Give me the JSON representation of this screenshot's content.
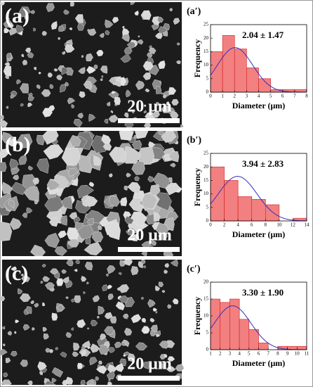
{
  "images": [
    {
      "label": "(a)",
      "scale_bar": "20 μm"
    },
    {
      "label": "(b)",
      "scale_bar": "20 μm"
    },
    {
      "label": "(c)",
      "scale_bar": "20 μm"
    }
  ],
  "chart_data": [
    {
      "type": "histogram",
      "label": "(a′)",
      "annotation": "2.04 ± 1.47",
      "x_label": "Diameter (μm)",
      "y_label": "Frequency",
      "bins": [
        0,
        1,
        2,
        3,
        4,
        5,
        6,
        7,
        8
      ],
      "values": [
        15,
        21,
        16,
        9,
        5,
        1,
        1,
        1
      ],
      "color": "#f28080",
      "edge_color": "#d02020",
      "fit": {
        "mean": 2.04,
        "sd": 1.47,
        "amplitude": 16.5,
        "color": "#3030c0"
      },
      "xlim": [
        0,
        8
      ],
      "xticks": [
        0,
        1,
        2,
        3,
        4,
        5,
        6,
        7,
        8
      ],
      "ylim": [
        0,
        25
      ],
      "yticks": [
        0,
        5,
        10,
        15,
        20,
        25
      ]
    },
    {
      "type": "histogram",
      "label": "(b′)",
      "annotation": "3.94 ± 2.83",
      "x_label": "Diameter (μm)",
      "y_label": "Frequency",
      "bins": [
        0,
        2,
        4,
        6,
        8,
        10,
        12,
        14
      ],
      "values": [
        20,
        15,
        9,
        8,
        6,
        0,
        1
      ],
      "color": "#f28080",
      "edge_color": "#d02020",
      "fit": {
        "mean": 3.94,
        "sd": 2.83,
        "amplitude": 16.5,
        "color": "#3030c0"
      },
      "xlim": [
        0,
        14
      ],
      "xticks": [
        0,
        2,
        4,
        6,
        8,
        10,
        12,
        14
      ],
      "ylim": [
        0,
        25
      ],
      "yticks": [
        0,
        5,
        10,
        15,
        20,
        25
      ]
    },
    {
      "type": "histogram",
      "label": "(c′)",
      "annotation": "3.30 ± 1.90",
      "x_label": "Diameter (μm)",
      "y_label": "Frequency",
      "bins": [
        1,
        2,
        3,
        4,
        5,
        6,
        7,
        8,
        9,
        10,
        11
      ],
      "values": [
        15,
        14,
        15,
        9,
        6,
        2,
        0,
        1,
        1,
        1
      ],
      "color": "#f28080",
      "edge_color": "#d02020",
      "fit": {
        "mean": 3.3,
        "sd": 1.9,
        "amplitude": 13,
        "color": "#3030c0"
      },
      "xlim": [
        1,
        11
      ],
      "xticks": [
        1,
        2,
        3,
        4,
        5,
        6,
        7,
        8,
        9,
        10,
        11
      ],
      "ylim": [
        0,
        20
      ],
      "yticks": [
        0,
        5,
        10,
        15,
        20
      ]
    }
  ]
}
